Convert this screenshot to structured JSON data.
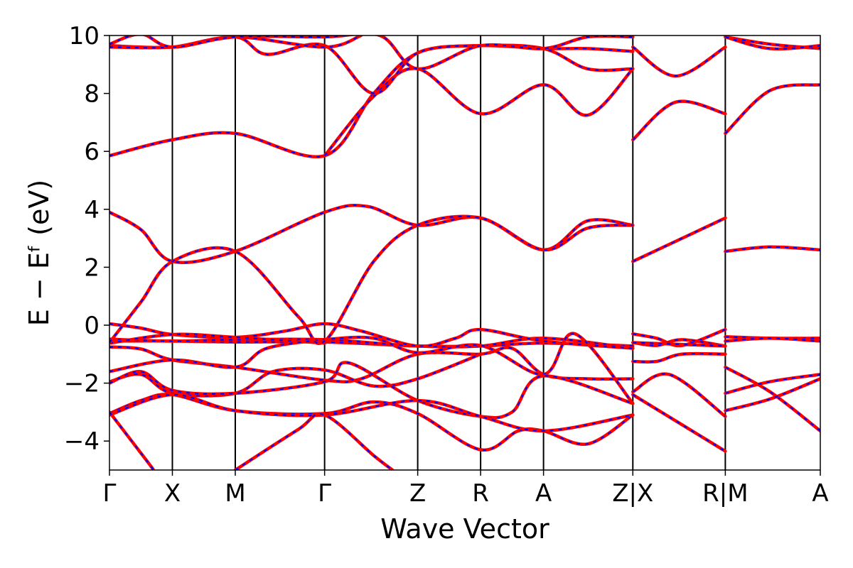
{
  "chart_data": {
    "type": "line",
    "title": "",
    "xlabel": "Wave Vector",
    "ylabel": "E − Eᶠ (eV)",
    "ylim": [
      -5,
      10
    ],
    "yticks": [
      -4,
      -2,
      0,
      2,
      4,
      6,
      8,
      10
    ],
    "ytick_labels": [
      "−4",
      "−2",
      "0",
      "2",
      "4",
      "6",
      "8",
      "10"
    ],
    "xlim": [
      0,
      11.3
    ],
    "kpoints": [
      {
        "label": "Γ",
        "x": 0
      },
      {
        "label": "X",
        "x": 1.0
      },
      {
        "label": "M",
        "x": 2.0
      },
      {
        "label": "Γ",
        "x": 3.42
      },
      {
        "label": "Z",
        "x": 4.9
      },
      {
        "label": "R",
        "x": 5.9
      },
      {
        "label": "A",
        "x": 6.9
      },
      {
        "label": "Z|X",
        "x": 8.32
      },
      {
        "label": "R|M",
        "x": 9.79
      },
      {
        "label": "A",
        "x": 11.3
      }
    ],
    "legend": "none",
    "grid": false,
    "colors": {
      "line_main": "#ff0000",
      "line_dash": "#0000ff",
      "kpath": "#000000"
    },
    "series": [
      {
        "values": [
          [
            0,
            -0.55
          ],
          [
            1,
            -0.55
          ],
          [
            2,
            -0.58
          ],
          [
            3.42,
            -0.58
          ],
          [
            4.9,
            -0.72
          ],
          [
            5.9,
            -0.72
          ],
          [
            6.9,
            -0.62
          ],
          [
            8.32,
            -0.72
          ]
        ]
      },
      {
        "values": [
          [
            0,
            -0.48
          ],
          [
            1,
            -0.55
          ],
          [
            2,
            -0.5
          ],
          [
            3.42,
            -0.5
          ],
          [
            4.9,
            -0.72
          ],
          [
            5.9,
            -0.72
          ],
          [
            6.9,
            -0.45
          ],
          [
            8.32,
            -0.8
          ]
        ]
      },
      {
        "values": [
          [
            0,
            0.05
          ],
          [
            0.5,
            -0.1
          ],
          [
            1,
            -0.32
          ],
          [
            2,
            -0.42
          ],
          [
            2.8,
            -0.2
          ],
          [
            3.42,
            0.05
          ],
          [
            4,
            -0.2
          ],
          [
            4.9,
            -0.72
          ],
          [
            5.5,
            -0.45
          ],
          [
            5.9,
            -0.15
          ],
          [
            6.9,
            -0.55
          ],
          [
            8.32,
            -0.8
          ]
        ]
      },
      {
        "values": [
          [
            0,
            -0.62
          ],
          [
            1,
            -0.32
          ],
          [
            2,
            -0.42
          ],
          [
            3.42,
            -0.62
          ]
        ]
      },
      {
        "values": [
          [
            0,
            -0.75
          ],
          [
            0.5,
            -0.82
          ],
          [
            1,
            -1.2
          ],
          [
            2,
            -1.45
          ],
          [
            3.42,
            -1.9
          ],
          [
            4,
            -1.85
          ],
          [
            4.9,
            -1.0
          ],
          [
            5.9,
            -1.0
          ],
          [
            6.4,
            -0.8
          ],
          [
            6.9,
            -1.7
          ],
          [
            7.6,
            -1.85
          ],
          [
            8.32,
            -1.85
          ]
        ]
      },
      {
        "values": [
          [
            0,
            -1.6
          ],
          [
            1,
            -1.2
          ],
          [
            2,
            -1.45
          ],
          [
            2.5,
            -0.8
          ],
          [
            3.42,
            -0.5
          ],
          [
            4.2,
            -0.45
          ],
          [
            4.9,
            -0.95
          ],
          [
            5.9,
            -0.7
          ],
          [
            6.9,
            -1.7
          ],
          [
            7.4,
            -0.3
          ],
          [
            8.32,
            -2.7
          ]
        ]
      },
      {
        "values": [
          [
            0,
            -1.95
          ],
          [
            0.5,
            -1.7
          ],
          [
            1,
            -2.35
          ],
          [
            2,
            -2.35
          ],
          [
            2.6,
            -1.6
          ],
          [
            3.42,
            -1.55
          ],
          [
            4.2,
            -2.1
          ],
          [
            4.9,
            -1.85
          ],
          [
            5.9,
            -1.0
          ]
        ]
      },
      {
        "values": [
          [
            0,
            -2.0
          ],
          [
            0.5,
            -1.6
          ],
          [
            1,
            -2.25
          ],
          [
            2,
            -2.35
          ],
          [
            3.42,
            -1.95
          ],
          [
            3.8,
            -1.3
          ],
          [
            4.9,
            -2.6
          ],
          [
            5.9,
            -3.15
          ],
          [
            6.4,
            -3.0
          ],
          [
            6.9,
            -1.75
          ],
          [
            8.32,
            -2.7
          ]
        ]
      },
      {
        "values": [
          [
            0,
            -3.05
          ],
          [
            0.5,
            -2.6
          ],
          [
            1,
            -2.4
          ],
          [
            2,
            -2.95
          ],
          [
            3.42,
            -3.05
          ],
          [
            4.2,
            -2.65
          ],
          [
            4.9,
            -3.05
          ],
          [
            5.9,
            -4.3
          ],
          [
            6.5,
            -3.65
          ],
          [
            6.9,
            -3.65
          ],
          [
            7.6,
            -4.1
          ],
          [
            8.32,
            -3.1
          ]
        ]
      },
      {
        "values": [
          [
            0,
            -3.1
          ],
          [
            1,
            -2.4
          ],
          [
            2,
            -2.95
          ],
          [
            3.42,
            -3.1
          ],
          [
            4.9,
            -2.6
          ],
          [
            5.9,
            -3.15
          ],
          [
            6.9,
            -3.65
          ],
          [
            8.32,
            -3.1
          ]
        ]
      },
      {
        "values": [
          [
            0,
            -3.0
          ],
          [
            0.6,
            -4.7
          ],
          [
            0.7,
            -5.0
          ]
        ]
      },
      {
        "values": [
          [
            2,
            -5.0
          ],
          [
            3.0,
            -3.6
          ],
          [
            3.42,
            -3.1
          ],
          [
            4.2,
            -4.5
          ],
          [
            4.5,
            -5.0
          ]
        ]
      },
      {
        "values": [
          [
            0,
            3.9
          ],
          [
            0.5,
            3.3
          ],
          [
            1,
            2.2
          ],
          [
            2,
            2.55
          ],
          [
            3.42,
            3.9
          ],
          [
            4.1,
            4.1
          ],
          [
            4.9,
            3.45
          ],
          [
            5.9,
            3.7
          ],
          [
            6.9,
            2.6
          ],
          [
            7.6,
            3.6
          ],
          [
            8.32,
            3.45
          ]
        ]
      },
      {
        "values": [
          [
            0,
            -0.6
          ],
          [
            0.5,
            0.8
          ],
          [
            1,
            2.2
          ],
          [
            2,
            2.55
          ],
          [
            3.0,
            0.3
          ],
          [
            3.42,
            -0.55
          ],
          [
            4.2,
            2.2
          ],
          [
            4.9,
            3.45
          ],
          [
            5.9,
            3.7
          ],
          [
            6.9,
            2.6
          ],
          [
            7.6,
            3.35
          ],
          [
            8.32,
            3.45
          ]
        ]
      },
      {
        "values": [
          [
            0,
            5.85
          ],
          [
            1,
            6.4
          ],
          [
            2,
            6.62
          ],
          [
            3.42,
            5.85
          ],
          [
            4.2,
            8.0
          ],
          [
            4.9,
            9.4
          ],
          [
            5.9,
            9.65
          ],
          [
            6.9,
            9.55
          ],
          [
            7.6,
            9.55
          ],
          [
            8.32,
            9.45
          ]
        ]
      },
      {
        "values": [
          [
            3.42,
            5.85
          ],
          [
            4.2,
            7.9
          ],
          [
            4.9,
            8.85
          ],
          [
            5.9,
            7.3
          ],
          [
            6.9,
            8.3
          ],
          [
            7.6,
            7.25
          ],
          [
            8.32,
            8.85
          ]
        ]
      },
      {
        "values": [
          [
            0,
            9.65
          ],
          [
            1,
            9.6
          ],
          [
            2,
            9.95
          ],
          [
            2.5,
            9.35
          ],
          [
            3.42,
            9.65
          ],
          [
            4.2,
            8.0
          ],
          [
            4.9,
            9.4
          ],
          [
            5.9,
            9.65
          ],
          [
            6.9,
            9.55
          ],
          [
            7.6,
            8.85
          ],
          [
            8.32,
            8.85
          ]
        ]
      },
      {
        "values": [
          [
            0,
            9.6
          ],
          [
            1,
            9.6
          ],
          [
            2,
            9.95
          ],
          [
            3.42,
            9.6
          ],
          [
            4.0,
            10.0
          ]
        ]
      },
      {
        "values": [
          [
            0,
            9.7
          ],
          [
            0.5,
            10.05
          ],
          [
            1,
            9.6
          ],
          [
            2,
            9.95
          ],
          [
            3.42,
            9.95
          ],
          [
            4.3,
            10.0
          ],
          [
            4.9,
            8.85
          ],
          [
            5.9,
            9.65
          ],
          [
            6.9,
            9.55
          ],
          [
            7.6,
            9.95
          ],
          [
            8.32,
            9.95
          ]
        ]
      },
      {
        "values": [
          [
            8.32,
            -0.3
          ],
          [
            8.7,
            -0.45
          ],
          [
            9.1,
            -0.7
          ],
          [
            9.79,
            -0.15
          ]
        ]
      },
      {
        "values": [
          [
            8.32,
            -0.6
          ],
          [
            8.7,
            -0.7
          ],
          [
            9.1,
            -0.5
          ],
          [
            9.79,
            -0.72
          ]
        ]
      },
      {
        "values": [
          [
            8.32,
            -0.6
          ],
          [
            9.79,
            -0.72
          ]
        ]
      },
      {
        "values": [
          [
            8.32,
            -1.25
          ],
          [
            8.7,
            -1.25
          ],
          [
            9.1,
            -1.0
          ],
          [
            9.79,
            -1.0
          ]
        ]
      },
      {
        "values": [
          [
            8.32,
            -2.3
          ],
          [
            8.9,
            -1.7
          ],
          [
            9.79,
            -3.15
          ]
        ]
      },
      {
        "values": [
          [
            8.32,
            -2.4
          ],
          [
            9.79,
            -4.35
          ]
        ]
      },
      {
        "values": [
          [
            8.32,
            2.2
          ],
          [
            9.79,
            3.7
          ]
        ]
      },
      {
        "values": [
          [
            8.32,
            6.4
          ],
          [
            9.0,
            7.7
          ],
          [
            9.79,
            7.3
          ]
        ]
      },
      {
        "values": [
          [
            8.32,
            9.6
          ],
          [
            9.0,
            8.6
          ],
          [
            9.79,
            9.6
          ]
        ]
      },
      {
        "values": [
          [
            9.79,
            -0.4
          ],
          [
            10.5,
            -0.45
          ],
          [
            11.3,
            -0.45
          ]
        ]
      },
      {
        "values": [
          [
            9.79,
            -0.55
          ],
          [
            10.5,
            -0.45
          ],
          [
            11.3,
            -0.55
          ]
        ]
      },
      {
        "values": [
          [
            9.79,
            -1.45
          ],
          [
            10.5,
            -2.3
          ],
          [
            11.3,
            -3.65
          ]
        ]
      },
      {
        "values": [
          [
            9.79,
            -2.35
          ],
          [
            10.5,
            -1.95
          ],
          [
            11.3,
            -1.7
          ]
        ]
      },
      {
        "values": [
          [
            9.79,
            -2.95
          ],
          [
            10.5,
            -2.55
          ],
          [
            11.3,
            -1.85
          ]
        ]
      },
      {
        "values": [
          [
            9.79,
            2.55
          ],
          [
            10.5,
            2.7
          ],
          [
            11.3,
            2.6
          ]
        ]
      },
      {
        "values": [
          [
            9.79,
            6.62
          ],
          [
            10.5,
            8.1
          ],
          [
            11.3,
            8.3
          ]
        ]
      },
      {
        "values": [
          [
            9.79,
            9.95
          ],
          [
            10.5,
            9.7
          ],
          [
            11.3,
            9.55
          ]
        ]
      },
      {
        "values": [
          [
            9.79,
            9.95
          ],
          [
            10.5,
            9.55
          ],
          [
            11.3,
            9.65
          ]
        ]
      }
    ]
  }
}
